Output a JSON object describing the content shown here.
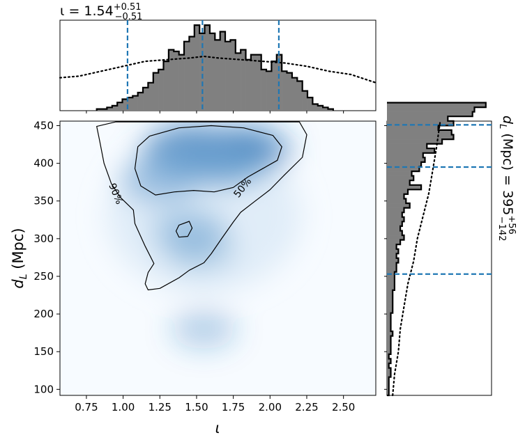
{
  "chart_data": [
    {
      "type": "heatmap",
      "panel": "joint",
      "xlabel": "ι",
      "ylabel": "d_L (Mpc)",
      "xlim": [
        0.57,
        2.72
      ],
      "ylim": [
        92,
        456
      ],
      "x_ticks": [
        "0.75",
        "1.00",
        "1.25",
        "1.50",
        "1.75",
        "2.00",
        "2.25",
        "2.50"
      ],
      "y_ticks": [
        "100",
        "150",
        "200",
        "250",
        "300",
        "350",
        "400",
        "450"
      ],
      "colormap": "Blues",
      "density_peaks": [
        {
          "x": 1.68,
          "y": 408,
          "weight": 1.0
        },
        {
          "x": 1.45,
          "y": 414,
          "weight": 0.85
        },
        {
          "x": 1.25,
          "y": 378,
          "weight": 0.45
        },
        {
          "x": 1.45,
          "y": 310,
          "weight": 0.35
        },
        {
          "x": 1.52,
          "y": 285,
          "weight": 0.2
        },
        {
          "x": 1.88,
          "y": 418,
          "weight": 0.45
        },
        {
          "x": 1.55,
          "y": 180,
          "weight": 0.06
        }
      ],
      "contours": [
        {
          "label": "50%",
          "paths": [
            [
              [
                1.1,
                422
              ],
              [
                1.18,
                436
              ],
              [
                1.38,
                447
              ],
              [
                1.6,
                450
              ],
              [
                1.82,
                447
              ],
              [
                2.02,
                437
              ],
              [
                2.08,
                422
              ],
              [
                2.05,
                404
              ],
              [
                1.95,
                393
              ],
              [
                1.85,
                382
              ],
              [
                1.75,
                368
              ],
              [
                1.62,
                362
              ],
              [
                1.48,
                364
              ],
              [
                1.35,
                362
              ],
              [
                1.22,
                358
              ],
              [
                1.12,
                370
              ],
              [
                1.08,
                393
              ],
              [
                1.1,
                422
              ]
            ],
            [
              [
                1.38,
                318
              ],
              [
                1.45,
                323
              ],
              [
                1.47,
                314
              ],
              [
                1.44,
                303
              ],
              [
                1.38,
                302
              ],
              [
                1.36,
                310
              ],
              [
                1.38,
                318
              ]
            ]
          ]
        },
        {
          "label": "90%",
          "paths": [
            [
              [
                0.82,
                449
              ],
              [
                0.95,
                455
              ],
              [
                2.2,
                455
              ],
              [
                2.25,
                438
              ],
              [
                2.22,
                408
              ],
              [
                2.1,
                385
              ],
              [
                2.0,
                365
              ],
              [
                1.9,
                350
              ],
              [
                1.8,
                335
              ],
              [
                1.75,
                322
              ],
              [
                1.67,
                300
              ],
              [
                1.6,
                280
              ],
              [
                1.55,
                268
              ],
              [
                1.45,
                258
              ],
              [
                1.38,
                248
              ],
              [
                1.25,
                234
              ],
              [
                1.17,
                232
              ],
              [
                1.15,
                240
              ],
              [
                1.17,
                255
              ],
              [
                1.21,
                267
              ],
              [
                1.15,
                290
              ],
              [
                1.08,
                320
              ],
              [
                1.07,
                338
              ],
              [
                0.98,
                355
              ],
              [
                0.92,
                373
              ],
              [
                0.87,
                400
              ],
              [
                0.84,
                430
              ],
              [
                0.82,
                449
              ]
            ]
          ]
        }
      ]
    },
    {
      "type": "histogram",
      "panel": "top-marginal",
      "title": "ι = 1.54",
      "title_sup": "+0.51",
      "title_sub": "−0.51",
      "bin_edges_start": 0.82,
      "bin_width": 0.035,
      "counts": [
        1,
        1,
        2,
        3,
        5,
        7,
        8,
        9,
        11,
        14,
        17,
        23,
        25,
        30,
        37,
        36,
        34,
        42,
        45,
        52,
        47,
        52,
        47,
        43,
        48,
        42,
        43,
        35,
        37,
        31,
        34,
        34,
        25,
        24,
        30,
        34,
        24,
        23,
        20,
        18,
        12,
        8,
        4,
        3,
        2,
        1
      ],
      "prior_curve": [
        [
          0.57,
          20
        ],
        [
          0.7,
          21
        ],
        [
          0.85,
          24
        ],
        [
          1.0,
          27
        ],
        [
          1.15,
          30
        ],
        [
          1.3,
          31
        ],
        [
          1.45,
          32
        ],
        [
          1.55,
          33
        ],
        [
          1.65,
          32
        ],
        [
          1.8,
          31
        ],
        [
          1.95,
          30
        ],
        [
          2.1,
          29
        ],
        [
          2.25,
          27
        ],
        [
          2.4,
          24
        ],
        [
          2.55,
          22
        ],
        [
          2.72,
          17
        ]
      ],
      "ymax": 55,
      "quantile_lines": [
        1.03,
        1.54,
        2.06
      ]
    },
    {
      "type": "histogram",
      "panel": "right-marginal",
      "orientation": "horizontal",
      "title": "d_L (Mpc) = 395",
      "title_sup": "+56",
      "title_sub": "−142",
      "bin_edges_start": 92,
      "bin_width": 6.07,
      "counts": [
        1,
        1,
        1,
        1,
        2,
        2,
        1,
        2,
        1,
        2,
        2,
        2,
        2,
        3,
        2,
        2,
        2,
        2,
        3,
        3,
        3,
        3,
        3,
        4,
        4,
        4,
        4,
        5,
        5,
        6,
        5,
        6,
        5,
        7,
        9,
        8,
        7,
        8,
        9,
        8,
        9,
        12,
        10,
        9,
        11,
        18,
        12,
        14,
        13,
        17,
        18,
        20,
        19,
        25,
        21,
        29,
        35,
        34,
        27,
        35,
        32,
        45,
        46,
        52
      ],
      "prior_curve": [
        [
          92,
          3
        ],
        [
          120,
          4
        ],
        [
          150,
          6
        ],
        [
          180,
          7
        ],
        [
          210,
          9
        ],
        [
          240,
          11
        ],
        [
          270,
          14
        ],
        [
          300,
          16
        ],
        [
          330,
          19
        ],
        [
          360,
          22
        ],
        [
          390,
          24
        ],
        [
          420,
          26
        ],
        [
          456,
          28
        ]
      ],
      "xmax": 55,
      "quantile_lines": [
        253,
        395,
        451
      ]
    }
  ]
}
